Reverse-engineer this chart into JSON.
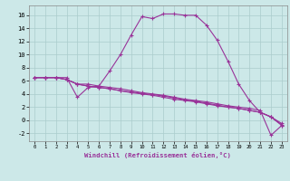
{
  "xlabel": "Windchill (Refroidissement éolien,°C)",
  "xlim": [
    -0.5,
    23.5
  ],
  "ylim": [
    -3.2,
    17.5
  ],
  "xticks": [
    0,
    1,
    2,
    3,
    4,
    5,
    6,
    7,
    8,
    9,
    10,
    11,
    12,
    13,
    14,
    15,
    16,
    17,
    18,
    19,
    20,
    21,
    22,
    23
  ],
  "yticks": [
    -2,
    0,
    2,
    4,
    6,
    8,
    10,
    12,
    14,
    16
  ],
  "bg_color": "#cce8e8",
  "line_color": "#993399",
  "grid_color": "#aacccc",
  "lines": [
    [
      6.5,
      6.5,
      6.5,
      6.5,
      3.5,
      5.0,
      5.2,
      7.5,
      10.0,
      13.0,
      15.8,
      15.5,
      16.2,
      16.2,
      16.0,
      16.0,
      14.5,
      12.2,
      9.0,
      5.5,
      3.0,
      1.2,
      0.5,
      -0.7
    ],
    [
      6.5,
      6.5,
      6.5,
      6.2,
      5.5,
      5.5,
      5.2,
      5.0,
      4.8,
      4.5,
      4.2,
      4.0,
      3.8,
      3.5,
      3.2,
      3.0,
      2.8,
      2.5,
      2.2,
      2.0,
      1.8,
      1.5,
      -2.3,
      -0.8
    ],
    [
      6.5,
      6.5,
      6.5,
      6.2,
      5.5,
      5.2,
      5.0,
      4.8,
      4.5,
      4.2,
      4.0,
      3.8,
      3.5,
      3.2,
      3.0,
      2.8,
      2.5,
      2.2,
      2.0,
      1.8,
      1.5,
      1.2,
      0.5,
      -0.8
    ],
    [
      6.5,
      6.5,
      6.5,
      6.2,
      5.5,
      5.2,
      5.0,
      4.8,
      4.5,
      4.3,
      4.1,
      3.9,
      3.7,
      3.4,
      3.1,
      2.9,
      2.6,
      2.3,
      2.0,
      1.8,
      1.5,
      1.2,
      0.5,
      -0.5
    ]
  ]
}
